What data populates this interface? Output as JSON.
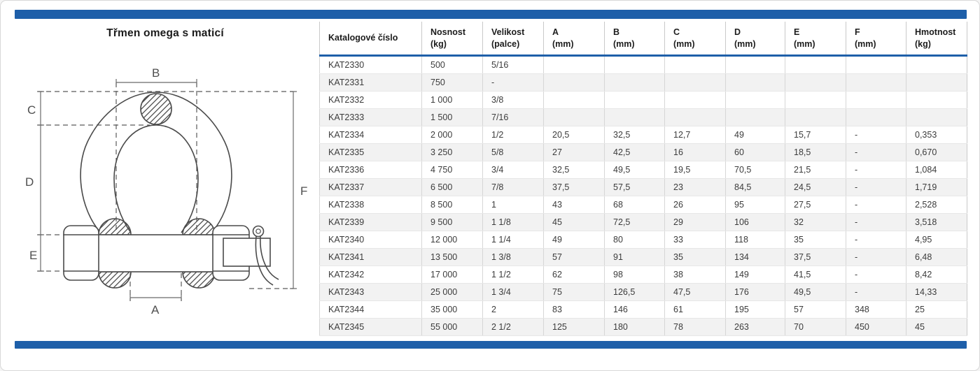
{
  "title": "Třmen omega s maticí",
  "colors": {
    "accent_blue": "#1e5fa9",
    "zebra_row": "#f2f2f2"
  },
  "diagram": {
    "description": "dimension drawing of a bow (omega) shackle with safety bolt, hex nut and cotter pin",
    "labels": {
      "A": "A",
      "B": "B",
      "C": "C",
      "D": "D",
      "E": "E",
      "F": "F"
    }
  },
  "table": {
    "columns": [
      {
        "line1": "Katalogové číslo",
        "line2": ""
      },
      {
        "line1": "Nosnost",
        "line2": "(kg)"
      },
      {
        "line1": "Velikost",
        "line2": "(palce)"
      },
      {
        "line1": "A",
        "line2": "(mm)"
      },
      {
        "line1": "B",
        "line2": "(mm)"
      },
      {
        "line1": "C",
        "line2": "(mm)"
      },
      {
        "line1": "D",
        "line2": "(mm)"
      },
      {
        "line1": "E",
        "line2": "(mm)"
      },
      {
        "line1": "F",
        "line2": "(mm)"
      },
      {
        "line1": "Hmotnost",
        "line2": "(kg)"
      }
    ],
    "rows": [
      [
        "KAT2330",
        "500",
        "5/16",
        "",
        "",
        "",
        "",
        "",
        "",
        ""
      ],
      [
        "KAT2331",
        "750",
        "-",
        "",
        "",
        "",
        "",
        "",
        "",
        ""
      ],
      [
        "KAT2332",
        "1 000",
        "3/8",
        "",
        "",
        "",
        "",
        "",
        "",
        ""
      ],
      [
        "KAT2333",
        "1 500",
        "7/16",
        "",
        "",
        "",
        "",
        "",
        "",
        ""
      ],
      [
        "KAT2334",
        "2 000",
        "1/2",
        "20,5",
        "32,5",
        "12,7",
        "49",
        "15,7",
        "-",
        "0,353"
      ],
      [
        "KAT2335",
        "3 250",
        "5/8",
        "27",
        "42,5",
        "16",
        "60",
        "18,5",
        "-",
        "0,670"
      ],
      [
        "KAT2336",
        "4 750",
        "3/4",
        "32,5",
        "49,5",
        "19,5",
        "70,5",
        "21,5",
        "-",
        "1,084"
      ],
      [
        "KAT2337",
        "6 500",
        "7/8",
        "37,5",
        "57,5",
        "23",
        "84,5",
        "24,5",
        "-",
        "1,719"
      ],
      [
        "KAT2338",
        "8 500",
        "1",
        "43",
        "68",
        "26",
        "95",
        "27,5",
        "-",
        "2,528"
      ],
      [
        "KAT2339",
        "9 500",
        "1 1/8",
        "45",
        "72,5",
        "29",
        "106",
        "32",
        "-",
        "3,518"
      ],
      [
        "KAT2340",
        "12 000",
        "1 1/4",
        "49",
        "80",
        "33",
        "118",
        "35",
        "-",
        "4,95"
      ],
      [
        "KAT2341",
        "13 500",
        "1 3/8",
        "57",
        "91",
        "35",
        "134",
        "37,5",
        "-",
        "6,48"
      ],
      [
        "KAT2342",
        "17 000",
        "1 1/2",
        "62",
        "98",
        "38",
        "149",
        "41,5",
        "-",
        "8,42"
      ],
      [
        "KAT2343",
        "25 000",
        "1 3/4",
        "75",
        "126,5",
        "47,5",
        "176",
        "49,5",
        "-",
        "14,33"
      ],
      [
        "KAT2344",
        "35 000",
        "2",
        "83",
        "146",
        "61",
        "195",
        "57",
        "348",
        "25"
      ],
      [
        "KAT2345",
        "55 000",
        "2 1/2",
        "125",
        "180",
        "78",
        "263",
        "70",
        "450",
        "45"
      ]
    ]
  }
}
